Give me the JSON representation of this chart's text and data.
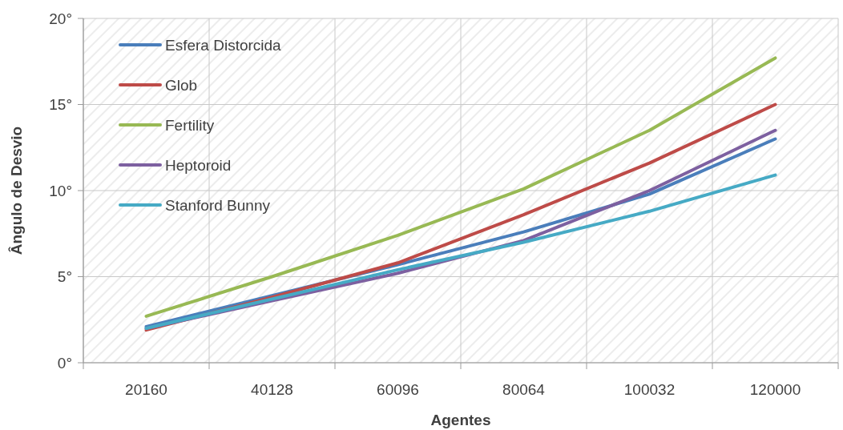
{
  "chart_data": {
    "type": "line",
    "xlabel": "Agentes",
    "ylabel": "Ângulo de Desvio",
    "categories": [
      "20160",
      "40128",
      "60096",
      "80064",
      "100032",
      "120000"
    ],
    "series": [
      {
        "name": "Esfera Distorcida",
        "color": "#4a7ebb",
        "values": [
          2.1,
          3.9,
          5.7,
          7.6,
          9.8,
          13.0
        ]
      },
      {
        "name": "Glob",
        "color": "#be4b48",
        "values": [
          1.9,
          3.8,
          5.8,
          8.6,
          11.6,
          15.0
        ]
      },
      {
        "name": "Fertility",
        "color": "#98b954",
        "values": [
          2.7,
          5.0,
          7.4,
          10.1,
          13.5,
          17.7
        ]
      },
      {
        "name": "Heptoroid",
        "color": "#7d60a0",
        "values": [
          2.0,
          3.6,
          5.2,
          7.1,
          10.0,
          13.5
        ]
      },
      {
        "name": "Stanford Bunny",
        "color": "#46aac5",
        "values": [
          2.0,
          3.7,
          5.4,
          7.0,
          8.8,
          10.9
        ]
      }
    ],
    "ylim": [
      0,
      20
    ],
    "yticks": [
      {
        "value": 0,
        "label": "0°"
      },
      {
        "value": 5,
        "label": "5°"
      },
      {
        "value": 10,
        "label": "10°"
      },
      {
        "value": 15,
        "label": "15°"
      },
      {
        "value": 20,
        "label": "20°"
      }
    ],
    "grid": true,
    "legend": "top left",
    "marker": "none",
    "line_style": "solid"
  }
}
